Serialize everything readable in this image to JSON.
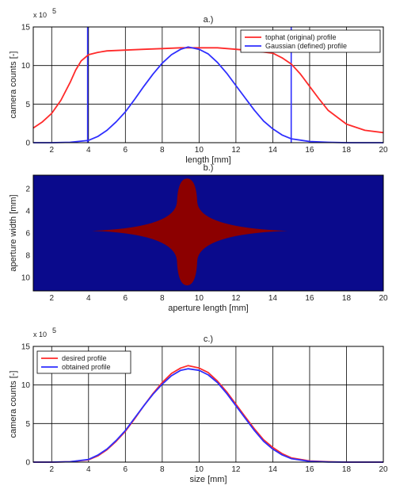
{
  "colors": {
    "red": "#ff2a2a",
    "blue": "#2e2eff",
    "navy": "#0a0a8c",
    "maroon": "#8c0000",
    "grid": "#000000"
  },
  "chart_data": [
    {
      "type": "line",
      "title": "a.)",
      "xlabel": "length [mm]",
      "ylabel": "camera counts [-]",
      "exponent_label": "x 10",
      "exponent_power": "5",
      "xlim": [
        1,
        20
      ],
      "ylim": [
        0,
        15
      ],
      "grid": true,
      "legend_position": "top-right",
      "xticks": [
        2,
        4,
        6,
        8,
        10,
        12,
        14,
        16,
        18,
        20
      ],
      "yticks": [
        0,
        5,
        10,
        15
      ],
      "vlines": [
        {
          "x": 3.95,
          "color": "blue"
        },
        {
          "x": 15.0,
          "color": "blue"
        }
      ],
      "series": [
        {
          "name": "tophat (original) profile",
          "color": "red",
          "x": [
            1,
            1.5,
            2,
            2.5,
            3,
            3.3,
            3.6,
            4,
            4.5,
            5,
            6,
            7,
            8,
            9,
            10,
            11,
            12,
            13,
            14,
            14.5,
            15,
            15.5,
            16,
            16.5,
            17,
            18,
            19,
            20
          ],
          "y": [
            1.9,
            2.7,
            3.8,
            5.5,
            7.8,
            9.4,
            10.6,
            11.4,
            11.7,
            11.9,
            12.0,
            12.1,
            12.2,
            12.3,
            12.3,
            12.3,
            12.1,
            11.9,
            11.6,
            11.0,
            10.2,
            8.9,
            7.3,
            5.7,
            4.2,
            2.4,
            1.6,
            1.3
          ]
        },
        {
          "name": "Gaussian (defined) profile",
          "color": "blue",
          "x": [
            1,
            2,
            3,
            4,
            4.5,
            5,
            5.5,
            6,
            6.5,
            7,
            7.5,
            8,
            8.5,
            9,
            9.4,
            10,
            10.5,
            11,
            11.5,
            12,
            12.5,
            13,
            13.5,
            14,
            14.5,
            15,
            16,
            17,
            18,
            19,
            20
          ],
          "y": [
            0,
            0,
            0.05,
            0.3,
            0.8,
            1.6,
            2.7,
            4.0,
            5.6,
            7.3,
            8.9,
            10.3,
            11.4,
            12.1,
            12.4,
            12.1,
            11.5,
            10.4,
            9.0,
            7.4,
            5.8,
            4.2,
            2.8,
            1.8,
            1.0,
            0.5,
            0.15,
            0.05,
            0,
            0,
            0
          ]
        }
      ]
    },
    {
      "type": "heatmap",
      "title": "b.)",
      "xlabel": "aperture length [mm]",
      "ylabel": "aperture width [mm]",
      "xlim": [
        1,
        20
      ],
      "ylim": [
        0.8,
        11.2
      ],
      "xticks": [
        2,
        4,
        6,
        8,
        10,
        12,
        14,
        16,
        18,
        20
      ],
      "yticks": [
        2,
        4,
        6,
        8,
        10
      ],
      "background_color": "navy",
      "shape_color": "maroon",
      "shape": {
        "center_x": 9.35,
        "center_y": 5.8,
        "left_tip_x": 4.2,
        "right_tip_x": 14.8,
        "top_tip_y": 1.1,
        "bottom_tip_y": 10.7,
        "vertical_half_width": 0.55
      }
    },
    {
      "type": "line",
      "title": "c.)",
      "xlabel": "size [mm]",
      "ylabel": "camera counts [-]",
      "exponent_label": "x 10",
      "exponent_power": "5",
      "xlim": [
        1,
        20
      ],
      "ylim": [
        0,
        15
      ],
      "grid": true,
      "legend_position": "top-left",
      "xticks": [
        2,
        4,
        6,
        8,
        10,
        12,
        14,
        16,
        18,
        20
      ],
      "yticks": [
        0,
        5,
        10,
        15
      ],
      "series": [
        {
          "name": "desired profile",
          "color": "red",
          "x": [
            1,
            2,
            3,
            4,
            4.5,
            5,
            5.5,
            6,
            6.5,
            7,
            7.5,
            8,
            8.5,
            9,
            9.4,
            10,
            10.5,
            11,
            11.5,
            12,
            12.5,
            13,
            13.5,
            14,
            14.5,
            15,
            16,
            17,
            18,
            19,
            20
          ],
          "y": [
            0,
            0,
            0.05,
            0.3,
            0.8,
            1.6,
            2.7,
            4.0,
            5.6,
            7.3,
            8.9,
            10.3,
            11.5,
            12.2,
            12.5,
            12.2,
            11.6,
            10.5,
            9.1,
            7.5,
            5.9,
            4.3,
            2.9,
            1.9,
            1.1,
            0.55,
            0.15,
            0.05,
            0,
            0,
            0
          ]
        },
        {
          "name": "obtained profile",
          "color": "blue",
          "x": [
            1,
            2,
            3,
            4,
            4.5,
            5,
            5.5,
            6,
            6.5,
            7,
            7.5,
            8,
            8.5,
            9,
            9.4,
            10,
            10.5,
            11,
            11.5,
            12,
            12.5,
            13,
            13.5,
            14,
            14.5,
            15,
            16,
            17,
            18,
            19,
            20
          ],
          "y": [
            0,
            0,
            0.05,
            0.35,
            0.9,
            1.7,
            2.8,
            4.1,
            5.7,
            7.3,
            8.8,
            10.1,
            11.2,
            11.9,
            12.1,
            11.9,
            11.3,
            10.3,
            8.9,
            7.3,
            5.7,
            4.1,
            2.7,
            1.7,
            0.95,
            0.45,
            0.1,
            0.02,
            0,
            0,
            0
          ]
        }
      ]
    }
  ]
}
